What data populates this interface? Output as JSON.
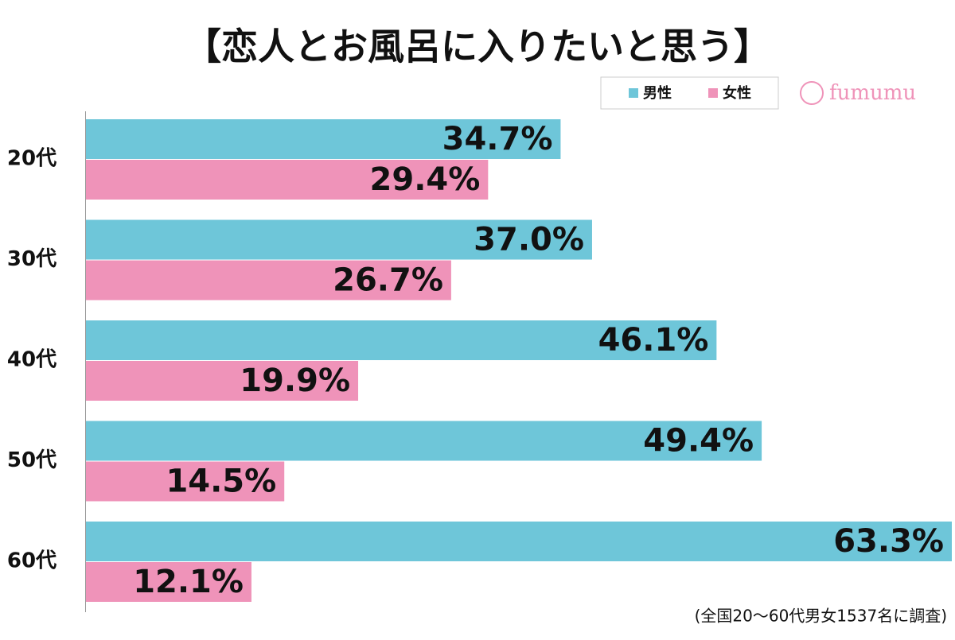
{
  "chart_data": {
    "type": "bar",
    "orientation": "horizontal",
    "title": "【恋人とお風呂に入りたいと思う】",
    "categories": [
      "20代",
      "30代",
      "40代",
      "50代",
      "60代"
    ],
    "series": [
      {
        "name": "男性",
        "color": "#6ec6d9",
        "values": [
          34.7,
          37.0,
          46.1,
          49.4,
          63.3
        ],
        "value_labels": [
          "34.7%",
          "37.0%",
          "46.1%",
          "49.4%",
          "63.3%"
        ]
      },
      {
        "name": "女性",
        "color": "#ef93b9",
        "values": [
          29.4,
          26.7,
          19.9,
          14.5,
          12.1
        ],
        "value_labels": [
          "29.4%",
          "26.7%",
          "19.9%",
          "14.5%",
          "12.1%"
        ]
      }
    ],
    "legend": "top-right",
    "note": "(全国20〜60代男女1537名に調査)"
  },
  "logo": "fumumu"
}
